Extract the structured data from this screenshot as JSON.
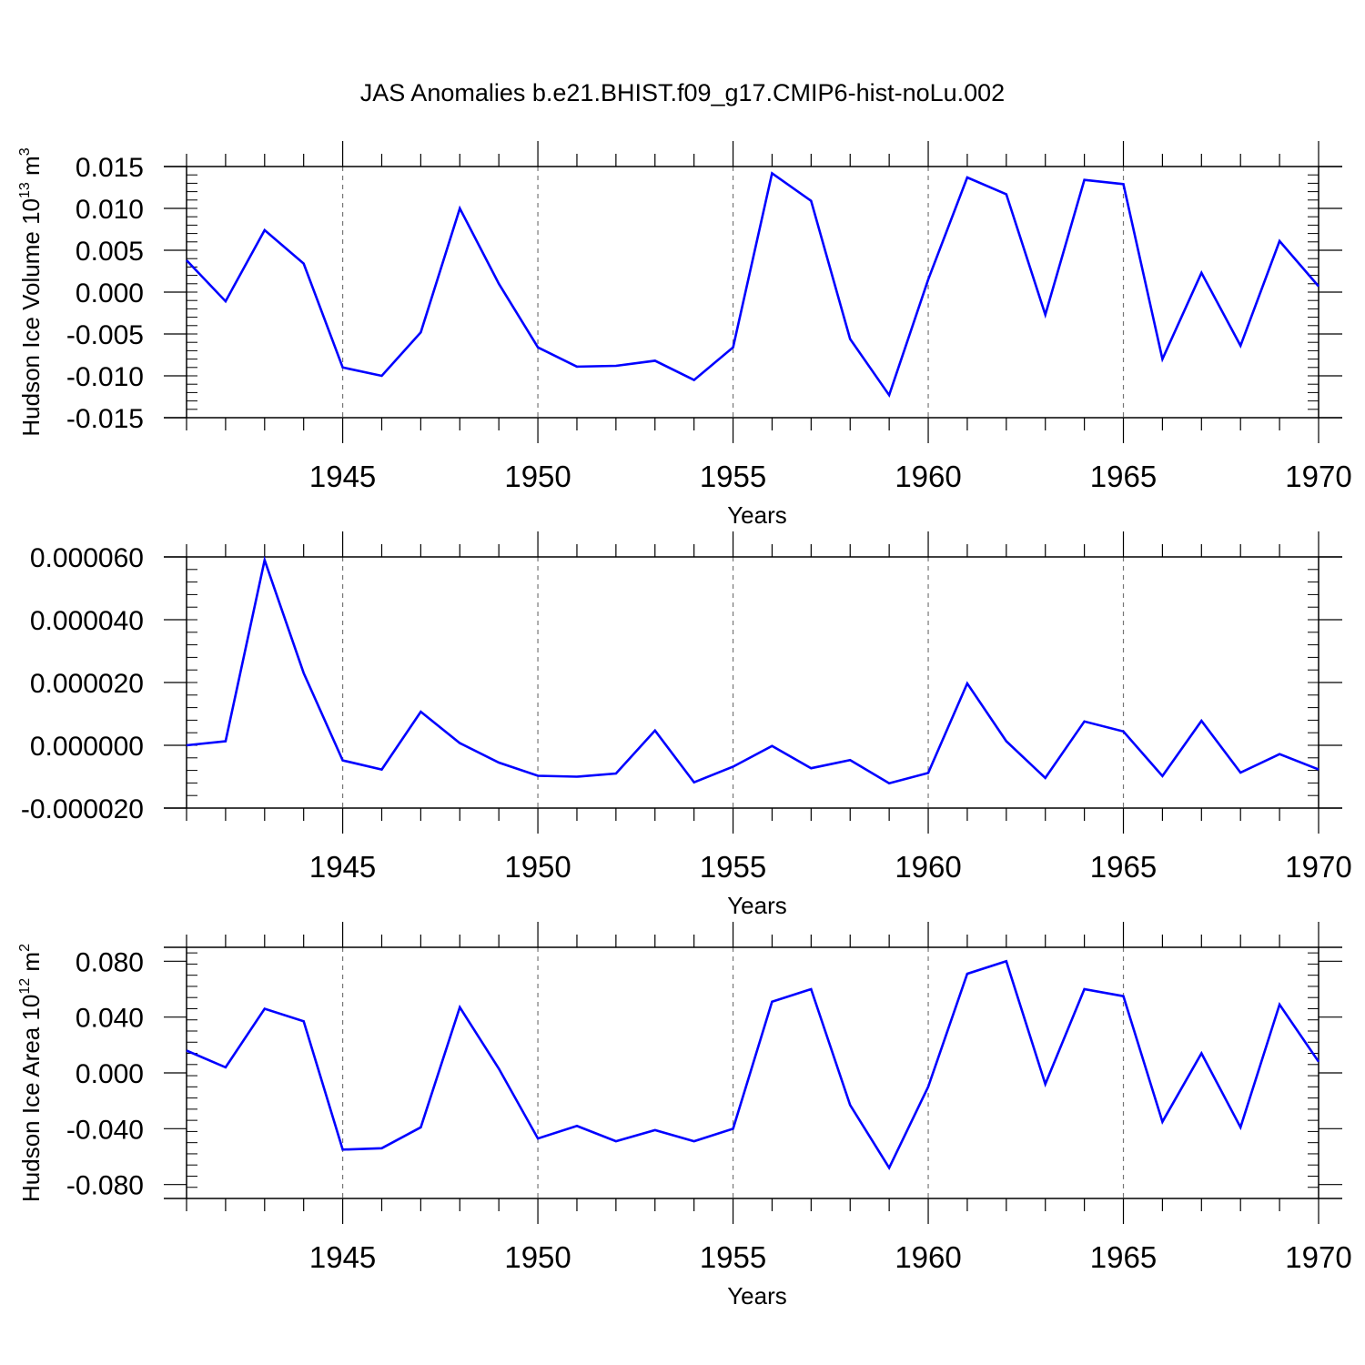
{
  "title": "JAS Anomalies b.e21.BHIST.f09_g17.CMIP6-hist-noLu.002",
  "colors": {
    "series": "#0000ff",
    "axis": "#000000",
    "grid": "#777777"
  },
  "chart_data": [
    {
      "type": "line",
      "ylabel": "Hudson Ice Volume 10",
      "ylabel_sup": "13",
      "ylabel_unit": " m",
      "ylabel_unit_sup": "3",
      "xlabel": "Years",
      "xlim": [
        1941,
        1970
      ],
      "ylim": [
        -0.015,
        0.015
      ],
      "xticks": [
        1945,
        1950,
        1955,
        1960,
        1965,
        1970
      ],
      "yticks": [
        -0.015,
        -0.01,
        -0.005,
        0.0,
        0.005,
        0.01,
        0.015
      ],
      "ytick_labels": [
        "-0.015",
        "-0.010",
        "-0.005",
        "0.000",
        "0.005",
        "0.010",
        "0.015"
      ],
      "grid": "vertical dashed at major x ticks",
      "x": [
        1941,
        1942,
        1943,
        1944,
        1945,
        1946,
        1947,
        1948,
        1949,
        1950,
        1951,
        1952,
        1953,
        1954,
        1955,
        1956,
        1957,
        1958,
        1959,
        1960,
        1961,
        1962,
        1963,
        1964,
        1965,
        1966,
        1967,
        1968,
        1969,
        1970
      ],
      "values": [
        0.0038,
        -0.0011,
        0.0074,
        0.0034,
        -0.009,
        -0.01,
        -0.0048,
        0.01,
        0.001,
        -0.0066,
        -0.0089,
        -0.0088,
        -0.0082,
        -0.0105,
        -0.0066,
        0.0142,
        0.0109,
        -0.0056,
        -0.0123,
        0.0015,
        0.0137,
        0.0117,
        -0.0027,
        0.0134,
        0.0129,
        -0.008,
        0.0023,
        -0.0064,
        0.0061,
        0.0007
      ]
    },
    {
      "type": "line",
      "ylabel": "",
      "xlabel": "Years",
      "xlim": [
        1941,
        1970
      ],
      "ylim": [
        -2e-05,
        6e-05
      ],
      "xticks": [
        1945,
        1950,
        1955,
        1960,
        1965,
        1970
      ],
      "yticks": [
        -2e-05,
        0.0,
        2e-05,
        4e-05,
        6e-05
      ],
      "ytick_labels": [
        "-0.000020",
        "0.000000",
        "0.000020",
        "0.000040",
        "0.000060"
      ],
      "grid": "vertical dashed at major x ticks",
      "x": [
        1941,
        1942,
        1943,
        1944,
        1945,
        1946,
        1947,
        1948,
        1949,
        1950,
        1951,
        1952,
        1953,
        1954,
        1955,
        1956,
        1957,
        1958,
        1959,
        1960,
        1961,
        1962,
        1963,
        1964,
        1965,
        1966,
        1967,
        1968,
        1969,
        1970
      ],
      "values": [
        0.0,
        1.3e-06,
        5.9e-05,
        2.3e-05,
        -4.8e-06,
        -7.7e-06,
        1.07e-05,
        7e-07,
        -5.5e-06,
        -9.7e-06,
        -1e-05,
        -9e-06,
        4.7e-06,
        -1.18e-05,
        -6.8e-06,
        -2e-07,
        -7.3e-06,
        -4.7e-06,
        -1.21e-05,
        -8.8e-06,
        1.97e-05,
        1.3e-06,
        -1.04e-05,
        7.6e-06,
        4.4e-06,
        -9.8e-06,
        7.8e-06,
        -8.7e-06,
        -2.8e-06,
        -7.7e-06
      ]
    },
    {
      "type": "line",
      "ylabel": "Hudson Ice Area 10",
      "ylabel_sup": "12",
      "ylabel_unit": " m",
      "ylabel_unit_sup": "2",
      "xlabel": "Years",
      "xlim": [
        1941,
        1970
      ],
      "ylim": [
        -0.09,
        0.09
      ],
      "xticks": [
        1945,
        1950,
        1955,
        1960,
        1965,
        1970
      ],
      "yticks": [
        -0.08,
        -0.04,
        0.0,
        0.04,
        0.08
      ],
      "ytick_labels": [
        "-0.080",
        "-0.040",
        "0.000",
        "0.040",
        "0.080"
      ],
      "grid": "vertical dashed at major x ticks",
      "x": [
        1941,
        1942,
        1943,
        1944,
        1945,
        1946,
        1947,
        1948,
        1949,
        1950,
        1951,
        1952,
        1953,
        1954,
        1955,
        1956,
        1957,
        1958,
        1959,
        1960,
        1961,
        1962,
        1963,
        1964,
        1965,
        1966,
        1967,
        1968,
        1969,
        1970
      ],
      "values": [
        0.016,
        0.004,
        0.046,
        0.037,
        -0.055,
        -0.054,
        -0.039,
        0.047,
        0.003,
        -0.047,
        -0.038,
        -0.049,
        -0.041,
        -0.049,
        -0.04,
        0.051,
        0.06,
        -0.023,
        -0.068,
        -0.01,
        0.071,
        0.08,
        -0.008,
        0.06,
        0.055,
        -0.035,
        0.014,
        -0.039,
        0.049,
        0.008
      ]
    }
  ]
}
